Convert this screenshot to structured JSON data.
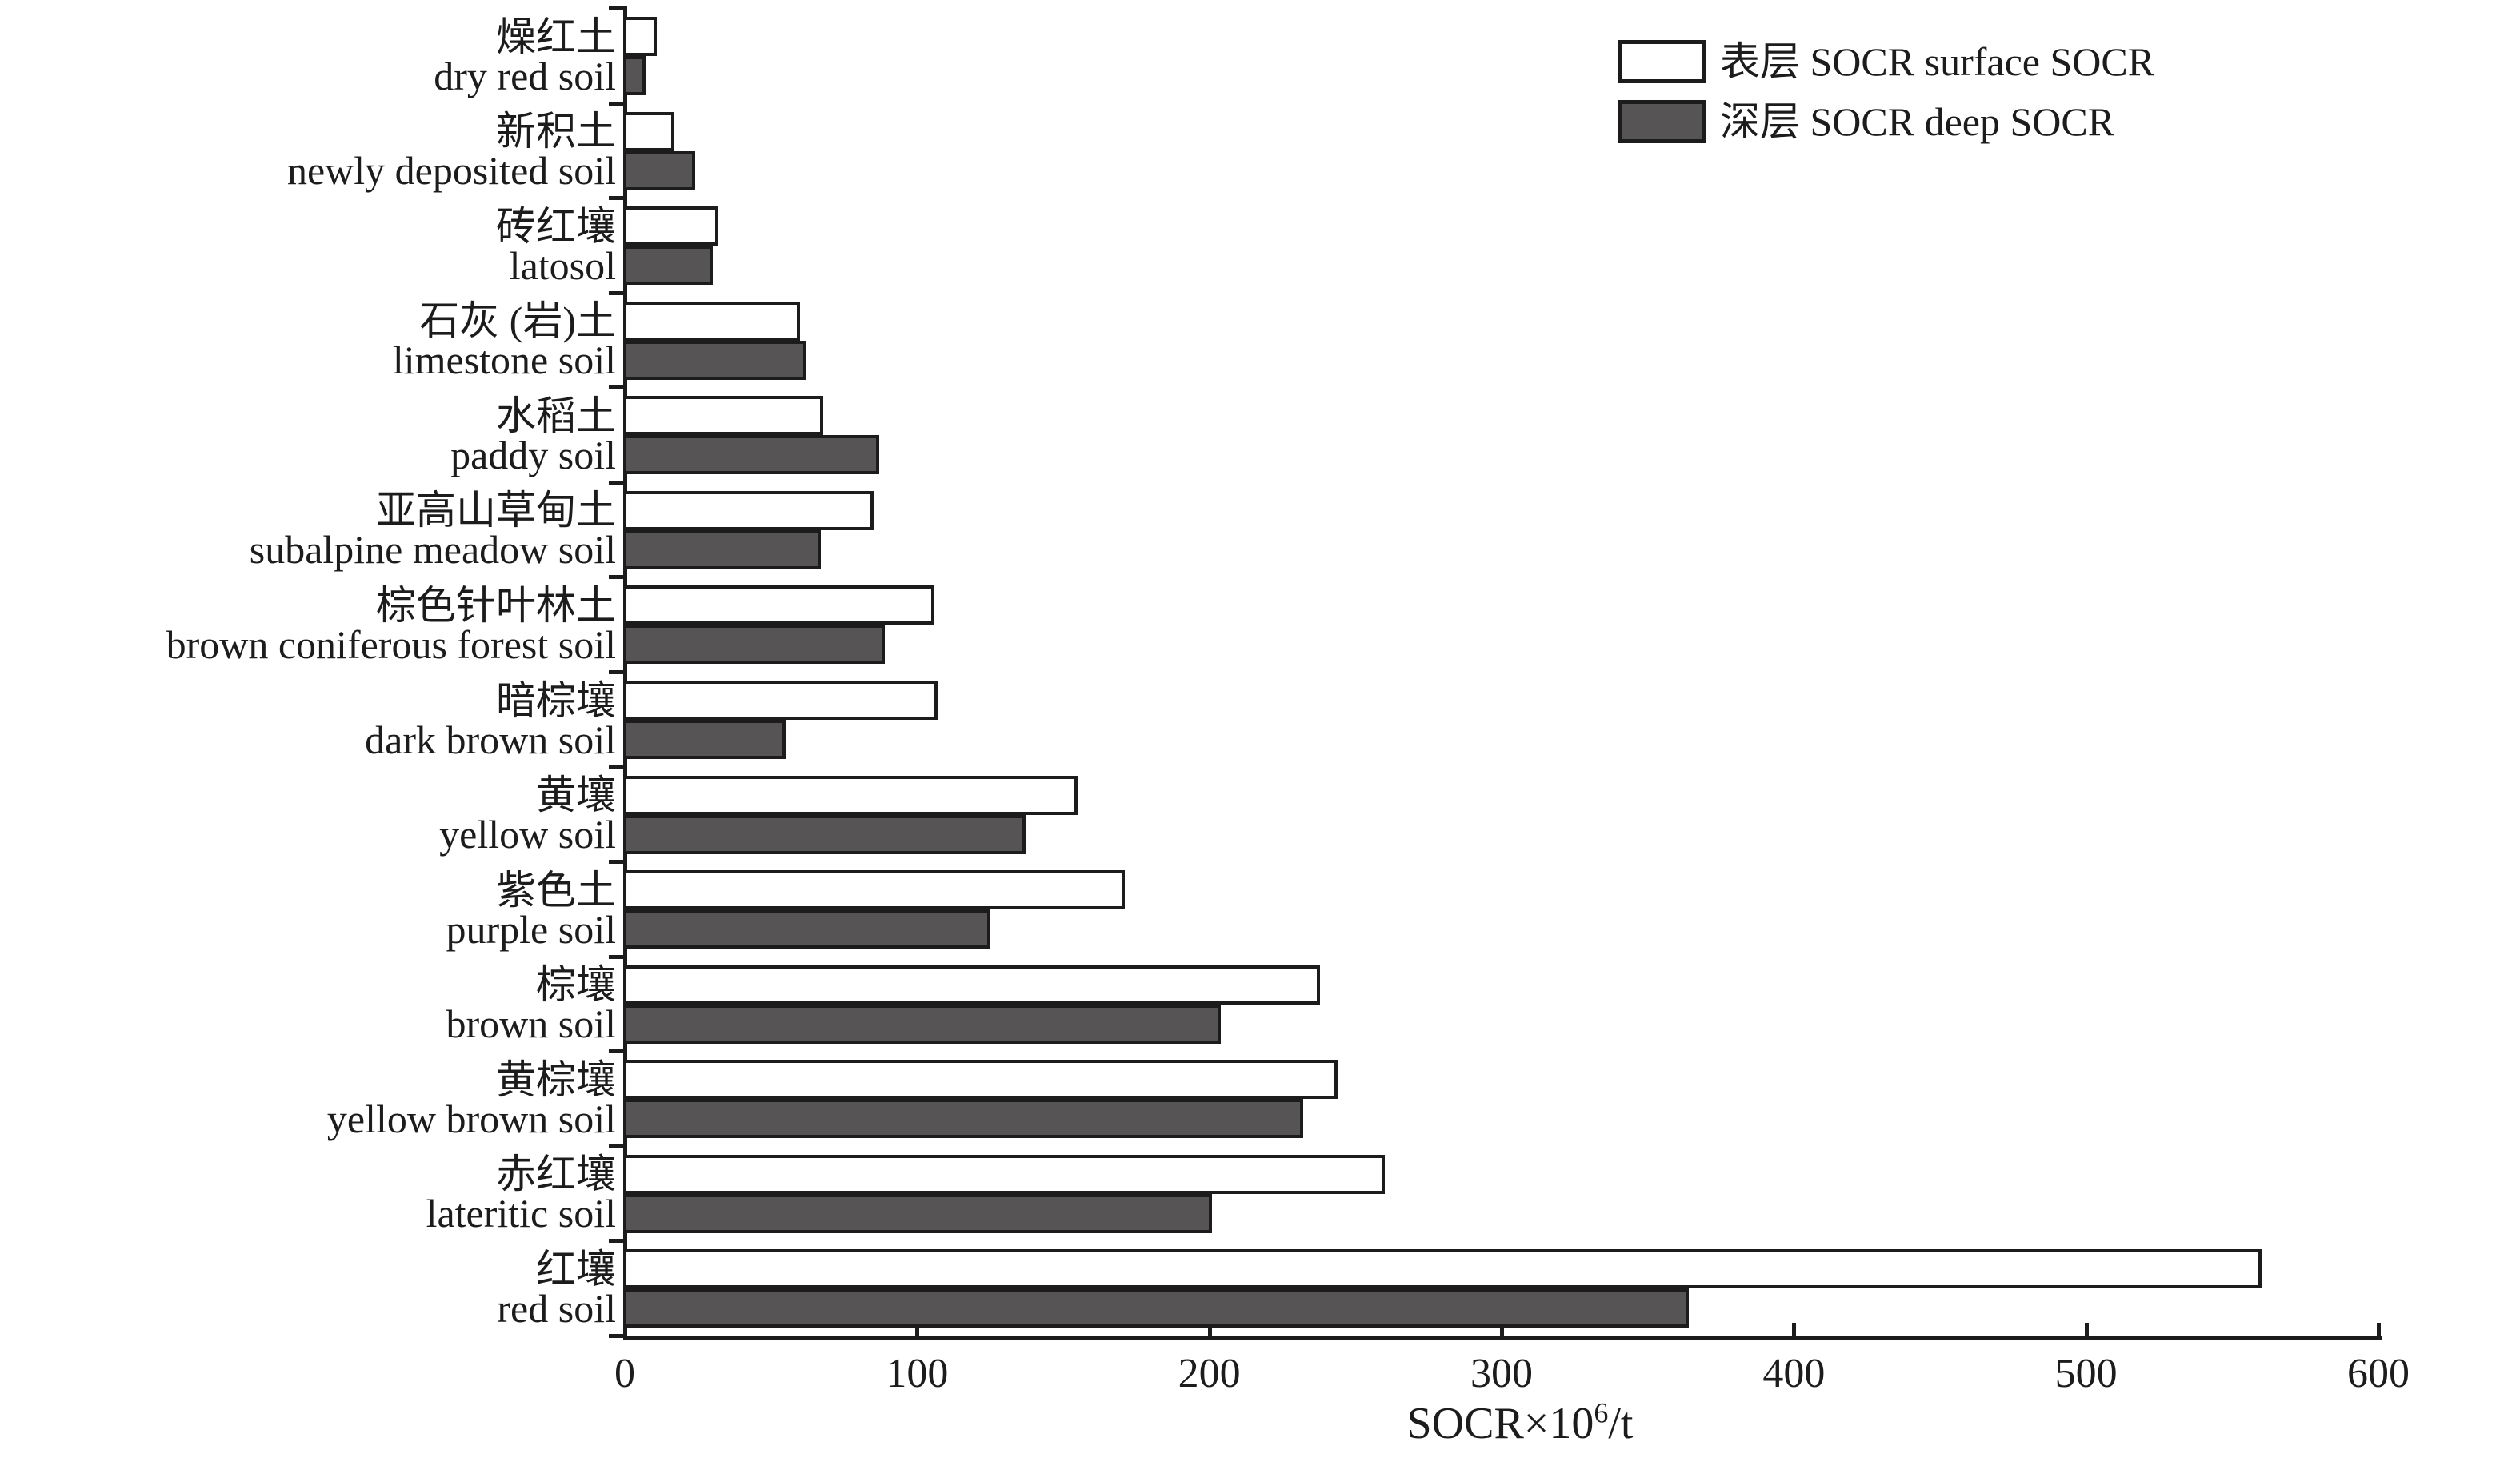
{
  "colors": {
    "ink": "#1c1c1c",
    "surface_fill": "#ffffff",
    "deep_fill": "#575455",
    "background": "#ffffff"
  },
  "legend": {
    "surface_label": "表层 SOCR surface SOCR",
    "deep_label": "深层 SOCR deep SOCR"
  },
  "chart_data": {
    "type": "bar",
    "orientation": "horizontal",
    "title": "",
    "xlabel": "SOCR×10⁶/t",
    "xlabel_parts": {
      "prefix": "SOCR×10",
      "sup": "6",
      "suffix": "/t"
    },
    "xlim": [
      0,
      600
    ],
    "xticks": [
      0,
      100,
      200,
      300,
      400,
      500,
      600
    ],
    "grid": false,
    "legend_position": "top-right",
    "categories": [
      {
        "zh": "燥红土",
        "en": "dry red soil"
      },
      {
        "zh": "新积土",
        "en": "newly deposited soil"
      },
      {
        "zh": "砖红壤",
        "en": "latosol"
      },
      {
        "zh": "石灰 (岩)土",
        "en": "limestone soil"
      },
      {
        "zh": "水稻土",
        "en": "paddy soil"
      },
      {
        "zh": "亚高山草甸土",
        "en": "subalpine meadow soil"
      },
      {
        "zh": "棕色针叶林土",
        "en": "brown coniferous forest soil"
      },
      {
        "zh": "暗棕壤",
        "en": "dark brown soil"
      },
      {
        "zh": "黄壤",
        "en": "yellow soil"
      },
      {
        "zh": "紫色土",
        "en": "purple soil"
      },
      {
        "zh": "棕壤",
        "en": "brown soil"
      },
      {
        "zh": "黄棕壤",
        "en": "yellow brown soil"
      },
      {
        "zh": "赤红壤",
        "en": "lateritic soil"
      },
      {
        "zh": "红壤",
        "en": "red soil"
      }
    ],
    "series": [
      {
        "name": "表层 SOCR surface SOCR",
        "key": "surface",
        "values": [
          11,
          17,
          32,
          60,
          68,
          85,
          106,
          107,
          155,
          171,
          238,
          244,
          260,
          560
        ]
      },
      {
        "name": "深层 SOCR deep SOCR",
        "key": "deep",
        "values": [
          7,
          24,
          30,
          62,
          87,
          67,
          89,
          55,
          137,
          125,
          204,
          232,
          201,
          364
        ]
      }
    ]
  }
}
